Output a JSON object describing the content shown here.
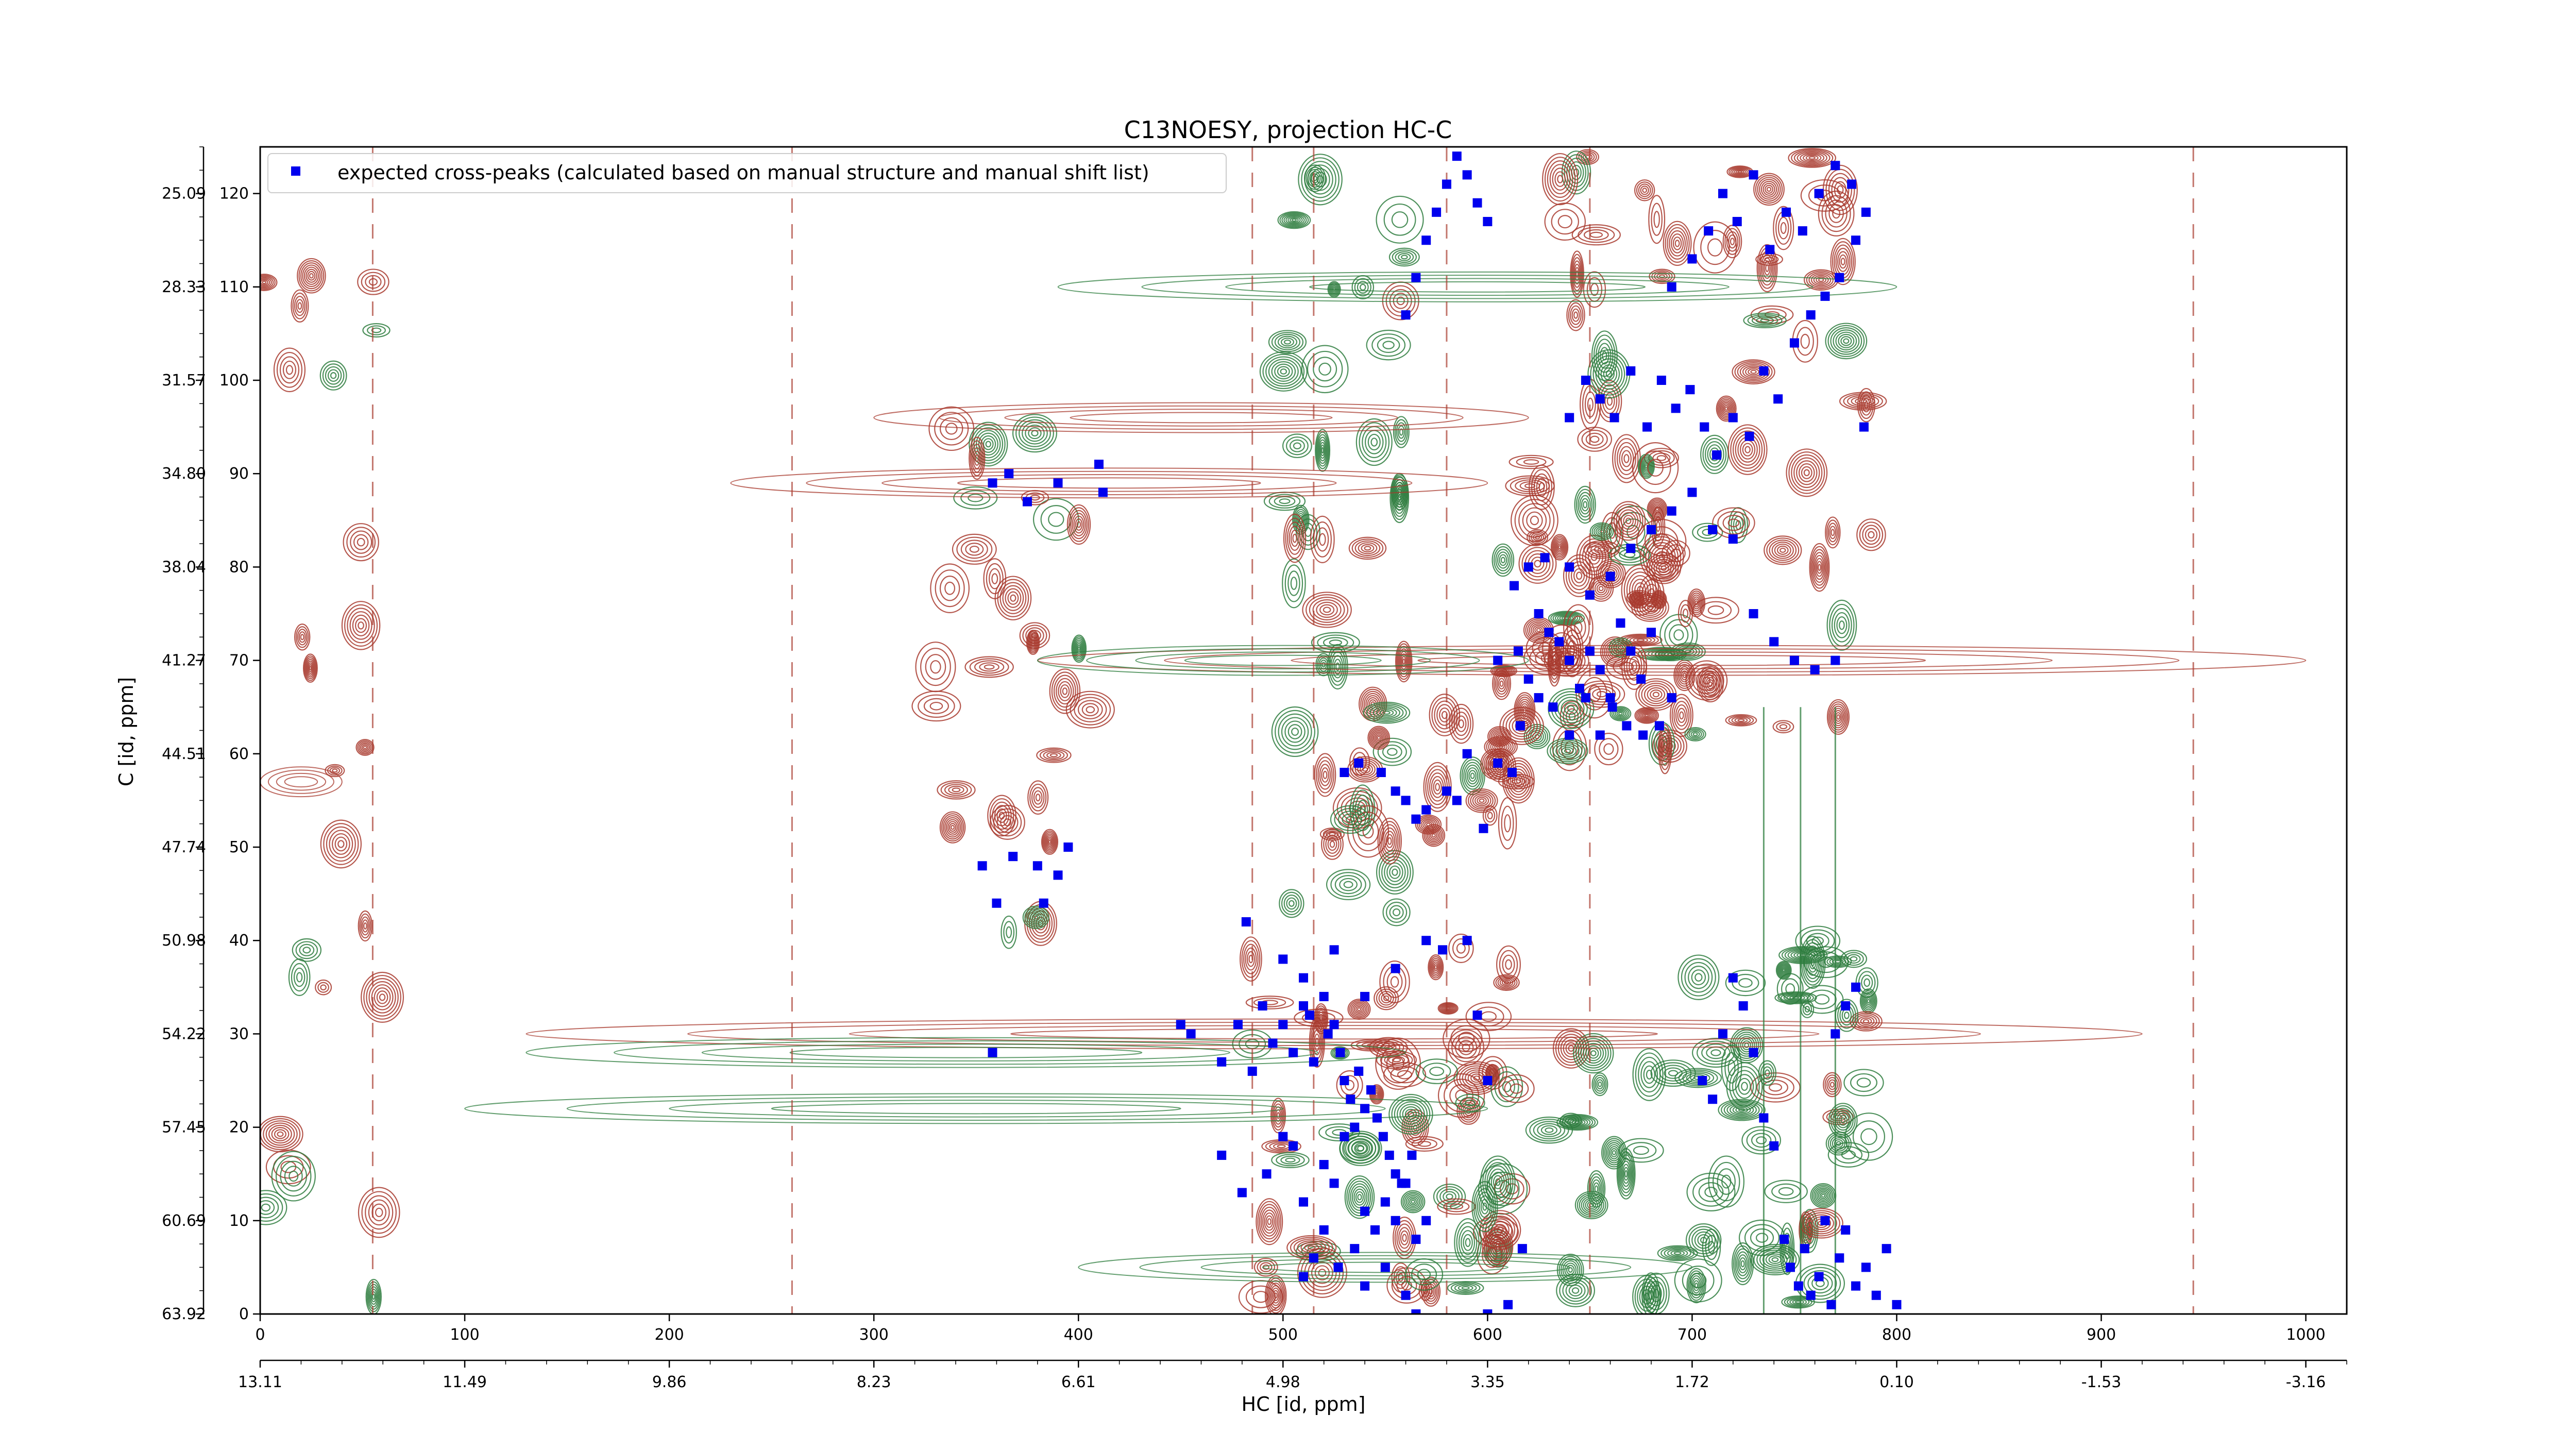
{
  "chart_data": {
    "type": "scatter",
    "title": "C13NOESY, projection HC-C",
    "xlabel": "HC [id, ppm]",
    "ylabel": "C [id, ppm]",
    "xlim": [
      0,
      1020
    ],
    "ylim": [
      0,
      125
    ],
    "x_ticks": [
      0,
      100,
      200,
      300,
      400,
      500,
      600,
      700,
      800,
      900,
      1000
    ],
    "x_ticks_ppm": [
      "13.11",
      "11.49",
      "9.86",
      "8.23",
      "6.61",
      "4.98",
      "3.35",
      "1.72",
      "0.10",
      "-1.53",
      "-3.16"
    ],
    "y_ticks": [
      0,
      10,
      20,
      30,
      40,
      50,
      60,
      70,
      80,
      90,
      100,
      110,
      120
    ],
    "y_ticks_ppm": [
      "63.92",
      "60.69",
      "57.45",
      "54.22",
      "50.98",
      "47.74",
      "44.51",
      "41.27",
      "38.04",
      "34.80",
      "31.57",
      "28.33",
      "25.09"
    ],
    "grid": false,
    "legend_position": "top-left",
    "contour_colors": {
      "positive": "#a83a2e",
      "negative": "#2e7d3e"
    },
    "marker_color": "#0000ee",
    "series": [
      {
        "name": "expected cross-peaks (calculated based on manual structure and manual shift list)",
        "points": [
          [
            358,
            89
          ],
          [
            366,
            90
          ],
          [
            375,
            87
          ],
          [
            390,
            89
          ],
          [
            410,
            91
          ],
          [
            412,
            88
          ],
          [
            353,
            48
          ],
          [
            360,
            44
          ],
          [
            368,
            49
          ],
          [
            380,
            48
          ],
          [
            383,
            44
          ],
          [
            390,
            47
          ],
          [
            395,
            50
          ],
          [
            358,
            28
          ],
          [
            450,
            31
          ],
          [
            455,
            30
          ],
          [
            470,
            27
          ],
          [
            478,
            31
          ],
          [
            485,
            26
          ],
          [
            490,
            33
          ],
          [
            495,
            29
          ],
          [
            500,
            31
          ],
          [
            505,
            28
          ],
          [
            510,
            33
          ],
          [
            513,
            32
          ],
          [
            515,
            27
          ],
          [
            520,
            34
          ],
          [
            522,
            30
          ],
          [
            525,
            31
          ],
          [
            528,
            28
          ],
          [
            530,
            25
          ],
          [
            533,
            23
          ],
          [
            537,
            26
          ],
          [
            540,
            22
          ],
          [
            543,
            24
          ],
          [
            546,
            21
          ],
          [
            549,
            19
          ],
          [
            552,
            17
          ],
          [
            555,
            15
          ],
          [
            560,
            14
          ],
          [
            563,
            17
          ],
          [
            470,
            17
          ],
          [
            480,
            13
          ],
          [
            492,
            15
          ],
          [
            500,
            19
          ],
          [
            505,
            18
          ],
          [
            510,
            12
          ],
          [
            520,
            16
          ],
          [
            525,
            14
          ],
          [
            530,
            19
          ],
          [
            535,
            20
          ],
          [
            540,
            11
          ],
          [
            545,
            9
          ],
          [
            550,
            12
          ],
          [
            555,
            10
          ],
          [
            558,
            14
          ],
          [
            565,
            8
          ],
          [
            570,
            10
          ],
          [
            510,
            4
          ],
          [
            515,
            6
          ],
          [
            520,
            9
          ],
          [
            527,
            5
          ],
          [
            535,
            7
          ],
          [
            540,
            3
          ],
          [
            550,
            5
          ],
          [
            560,
            2
          ],
          [
            565,
            0
          ],
          [
            600,
            0
          ],
          [
            610,
            1
          ],
          [
            617,
            7
          ],
          [
            482,
            42
          ],
          [
            500,
            38
          ],
          [
            510,
            36
          ],
          [
            525,
            39
          ],
          [
            540,
            34
          ],
          [
            555,
            37
          ],
          [
            570,
            40
          ],
          [
            578,
            39
          ],
          [
            590,
            40
          ],
          [
            595,
            32
          ],
          [
            600,
            25
          ],
          [
            530,
            58
          ],
          [
            537,
            59
          ],
          [
            548,
            58
          ],
          [
            555,
            56
          ],
          [
            560,
            55
          ],
          [
            565,
            53
          ],
          [
            570,
            54
          ],
          [
            580,
            56
          ],
          [
            585,
            55
          ],
          [
            590,
            60
          ],
          [
            598,
            52
          ],
          [
            605,
            59
          ],
          [
            612,
            58
          ],
          [
            605,
            70
          ],
          [
            615,
            71
          ],
          [
            620,
            68
          ],
          [
            625,
            75
          ],
          [
            630,
            73
          ],
          [
            635,
            72
          ],
          [
            640,
            70
          ],
          [
            645,
            67
          ],
          [
            650,
            71
          ],
          [
            655,
            69
          ],
          [
            660,
            66
          ],
          [
            665,
            74
          ],
          [
            670,
            71
          ],
          [
            675,
            68
          ],
          [
            680,
            73
          ],
          [
            616,
            63
          ],
          [
            625,
            66
          ],
          [
            632,
            65
          ],
          [
            640,
            62
          ],
          [
            648,
            66
          ],
          [
            655,
            62
          ],
          [
            661,
            65
          ],
          [
            668,
            63
          ],
          [
            676,
            62
          ],
          [
            684,
            63
          ],
          [
            690,
            66
          ],
          [
            613,
            78
          ],
          [
            620,
            80
          ],
          [
            628,
            81
          ],
          [
            640,
            80
          ],
          [
            650,
            77
          ],
          [
            660,
            79
          ],
          [
            670,
            82
          ],
          [
            680,
            84
          ],
          [
            690,
            86
          ],
          [
            700,
            88
          ],
          [
            710,
            84
          ],
          [
            720,
            83
          ],
          [
            730,
            75
          ],
          [
            740,
            72
          ],
          [
            750,
            70
          ],
          [
            760,
            69
          ],
          [
            770,
            70
          ],
          [
            640,
            96
          ],
          [
            648,
            100
          ],
          [
            655,
            98
          ],
          [
            662,
            96
          ],
          [
            670,
            101
          ],
          [
            678,
            95
          ],
          [
            685,
            100
          ],
          [
            692,
            97
          ],
          [
            699,
            99
          ],
          [
            706,
            95
          ],
          [
            712,
            92
          ],
          [
            720,
            96
          ],
          [
            728,
            94
          ],
          [
            735,
            101
          ],
          [
            742,
            98
          ],
          [
            750,
            104
          ],
          [
            758,
            107
          ],
          [
            765,
            109
          ],
          [
            772,
            111
          ],
          [
            780,
            115
          ],
          [
            785,
            118
          ],
          [
            690,
            110
          ],
          [
            700,
            113
          ],
          [
            708,
            116
          ],
          [
            715,
            120
          ],
          [
            722,
            117
          ],
          [
            730,
            122
          ],
          [
            738,
            114
          ],
          [
            746,
            118
          ],
          [
            754,
            116
          ],
          [
            762,
            120
          ],
          [
            770,
            123
          ],
          [
            778,
            121
          ],
          [
            784,
            95
          ],
          [
            560,
            107
          ],
          [
            565,
            111
          ],
          [
            570,
            115
          ],
          [
            575,
            118
          ],
          [
            580,
            121
          ],
          [
            585,
            124
          ],
          [
            590,
            122
          ],
          [
            595,
            119
          ],
          [
            600,
            117
          ],
          [
            705,
            25
          ],
          [
            710,
            23
          ],
          [
            715,
            30
          ],
          [
            720,
            36
          ],
          [
            725,
            33
          ],
          [
            730,
            28
          ],
          [
            735,
            21
          ],
          [
            740,
            18
          ],
          [
            745,
            8
          ],
          [
            748,
            5
          ],
          [
            752,
            3
          ],
          [
            755,
            7
          ],
          [
            758,
            2
          ],
          [
            762,
            4
          ],
          [
            765,
            10
          ],
          [
            768,
            1
          ],
          [
            772,
            6
          ],
          [
            775,
            9
          ],
          [
            780,
            3
          ],
          [
            785,
            5
          ],
          [
            790,
            2
          ],
          [
            795,
            7
          ],
          [
            800,
            1
          ],
          [
            770,
            30
          ],
          [
            775,
            33
          ],
          [
            780,
            35
          ]
        ]
      }
    ]
  }
}
